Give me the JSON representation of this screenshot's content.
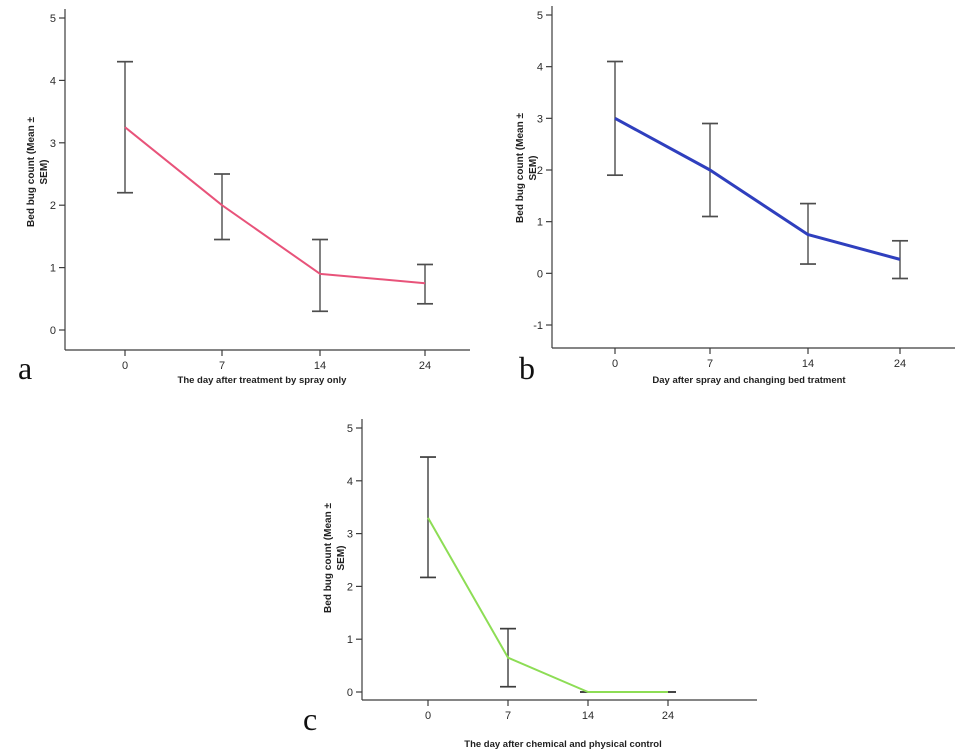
{
  "figure": {
    "background": "#ffffff"
  },
  "chart_data": [
    {
      "type": "line",
      "panel_label": "a",
      "x": [
        0,
        7,
        14,
        24
      ],
      "values": [
        3.25,
        2.0,
        0.9,
        0.75
      ],
      "err_upper": [
        4.3,
        2.5,
        1.45,
        1.05
      ],
      "err_lower": [
        2.2,
        1.45,
        0.3,
        0.42
      ],
      "xlabel": "The day after treatment by spray only",
      "ylabel": "Bed bug count (Mean ± SEM)",
      "ylabel_lines": [
        "Bed bug count (Mean ±",
        "SEM)"
      ],
      "ylim": [
        0,
        5
      ],
      "yticks": [
        0,
        1,
        2,
        3,
        4,
        5
      ],
      "line_color": "#e8537a",
      "error_bar_color": "#4d4d4d",
      "axis_color": "#3c3c3c",
      "grid": false,
      "legend": "none"
    },
    {
      "type": "line",
      "panel_label": "b",
      "x": [
        0,
        7,
        14,
        24
      ],
      "values": [
        3.0,
        2.0,
        0.75,
        0.27
      ],
      "err_upper": [
        4.1,
        2.9,
        1.35,
        0.63
      ],
      "err_lower": [
        1.9,
        1.1,
        0.18,
        -0.1
      ],
      "xlabel": "Day after spray and changing bed tratment",
      "ylabel": "Bed bug count (Mean ± SEM)",
      "ylabel_lines": [
        "Bed bug count (Mean ±",
        "SEM)"
      ],
      "ylim": [
        -1,
        5
      ],
      "yticks": [
        -1,
        0,
        1,
        2,
        3,
        4,
        5
      ],
      "line_color": "#2f3fbe",
      "error_bar_color": "#4d4d4d",
      "axis_color": "#3c3c3c",
      "grid": false,
      "legend": "none"
    },
    {
      "type": "line",
      "panel_label": "c",
      "x": [
        0,
        7,
        14,
        24
      ],
      "values": [
        3.3,
        0.65,
        0.0,
        0.0
      ],
      "err_upper": [
        4.45,
        1.2,
        0.0,
        0.0
      ],
      "err_lower": [
        2.17,
        0.1,
        0.0,
        0.0
      ],
      "xlabel": "The day after chemical and physical control",
      "ylabel": "Bed bug count (Mean ± SEM)",
      "ylabel_lines": [
        "Bed bug count (Mean ±",
        "SEM)"
      ],
      "ylim": [
        0,
        5
      ],
      "yticks": [
        0,
        1,
        2,
        3,
        4,
        5
      ],
      "line_color": "#8ddd55",
      "error_bar_color": "#3d3d3d",
      "axis_color": "#3c3c3c",
      "grid": false,
      "legend": "none"
    }
  ]
}
